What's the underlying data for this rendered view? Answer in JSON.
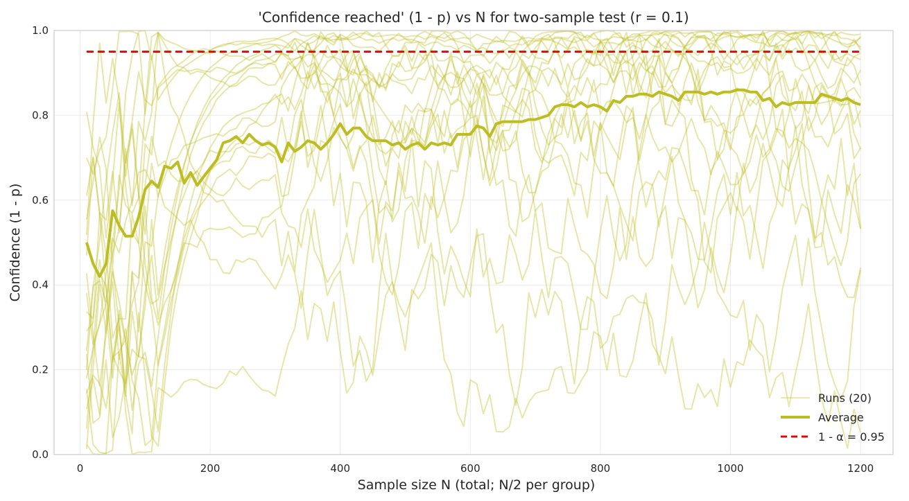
{
  "chart_data": {
    "type": "line",
    "title": "'Confidence reached' (1 - p) vs N for two-sample test (r = 0.1)",
    "xlabel": "Sample size N (total; N/2 per group)",
    "ylabel": "Confidence (1 - p)",
    "xlim": [
      -40,
      1250
    ],
    "ylim": [
      0,
      1.0
    ],
    "xticks": [
      0,
      200,
      400,
      600,
      800,
      1000,
      1200
    ],
    "yticks": [
      0.0,
      0.2,
      0.4,
      0.6,
      0.8,
      1.0
    ],
    "xtick_labels": [
      "0",
      "200",
      "400",
      "600",
      "800",
      "1000",
      "1200"
    ],
    "ytick_labels": [
      "0.0",
      "0.2",
      "0.4",
      "0.6",
      "0.8",
      "1.0"
    ],
    "grid": true,
    "legend_position": "bottom-right",
    "colors": {
      "runs": "#bcbd22",
      "average": "#bcbd22",
      "threshold": "#ee0000",
      "grid": "#ebebeb",
      "spine": "#cccccc"
    },
    "series": [
      {
        "name": "Average",
        "legend": "Average",
        "x": [
          10,
          20,
          30,
          40,
          50,
          60,
          70,
          80,
          90,
          100,
          110,
          120,
          130,
          140,
          150,
          160,
          170,
          180,
          190,
          200,
          210,
          220,
          230,
          240,
          250,
          260,
          270,
          280,
          290,
          300,
          310,
          320,
          330,
          340,
          350,
          360,
          370,
          380,
          390,
          400,
          410,
          420,
          430,
          440,
          450,
          460,
          470,
          480,
          490,
          500,
          510,
          520,
          530,
          540,
          550,
          560,
          570,
          580,
          590,
          600,
          610,
          620,
          630,
          640,
          650,
          660,
          670,
          680,
          690,
          700,
          710,
          720,
          730,
          740,
          750,
          760,
          770,
          780,
          790,
          800,
          810,
          820,
          830,
          840,
          850,
          860,
          870,
          880,
          890,
          900,
          910,
          920,
          930,
          940,
          950,
          960,
          970,
          980,
          990,
          1000,
          1010,
          1020,
          1030,
          1040,
          1050,
          1060,
          1070,
          1080,
          1090,
          1100,
          1110,
          1120,
          1130,
          1140,
          1150,
          1160,
          1170,
          1180,
          1190,
          1200
        ],
        "values": [
          0.5,
          0.45,
          0.42,
          0.45,
          0.575,
          0.54,
          0.515,
          0.515,
          0.56,
          0.625,
          0.645,
          0.63,
          0.68,
          0.675,
          0.69,
          0.64,
          0.665,
          0.635,
          0.655,
          0.675,
          0.695,
          0.735,
          0.74,
          0.75,
          0.735,
          0.755,
          0.74,
          0.73,
          0.735,
          0.725,
          0.69,
          0.735,
          0.715,
          0.725,
          0.74,
          0.735,
          0.72,
          0.735,
          0.755,
          0.78,
          0.755,
          0.77,
          0.77,
          0.75,
          0.74,
          0.74,
          0.74,
          0.73,
          0.735,
          0.72,
          0.73,
          0.735,
          0.72,
          0.735,
          0.73,
          0.735,
          0.73,
          0.755,
          0.755,
          0.755,
          0.775,
          0.77,
          0.75,
          0.78,
          0.785,
          0.785,
          0.785,
          0.785,
          0.79,
          0.79,
          0.795,
          0.8,
          0.82,
          0.825,
          0.825,
          0.82,
          0.83,
          0.82,
          0.825,
          0.82,
          0.81,
          0.835,
          0.83,
          0.845,
          0.845,
          0.85,
          0.85,
          0.845,
          0.855,
          0.85,
          0.845,
          0.835,
          0.855,
          0.855,
          0.855,
          0.85,
          0.855,
          0.85,
          0.855,
          0.855,
          0.86,
          0.86,
          0.855,
          0.855,
          0.835,
          0.84,
          0.82,
          0.83,
          0.825,
          0.83,
          0.83,
          0.83,
          0.83,
          0.85,
          0.845,
          0.84,
          0.835,
          0.84,
          0.83,
          0.825
        ]
      },
      {
        "name": "Threshold",
        "legend": "1 - α = 0.95",
        "x": [
          10,
          1200
        ],
        "values": [
          0.95,
          0.95
        ]
      },
      {
        "name": "Runs",
        "legend": "Runs (20)",
        "count": 20,
        "x_start": 10,
        "x_step": 10,
        "x_end": 1200,
        "note": "20 individual noisy runs; values approximated (each run's path generated deterministically from its seed and target level)",
        "runs": [
          {
            "seed": 11,
            "start": 0.92,
            "level": 0.99,
            "noise": 0.01
          },
          {
            "seed": 23,
            "start": 0.8,
            "level": 0.985,
            "noise": 0.015
          },
          {
            "seed": 37,
            "start": 0.7,
            "level": 0.98,
            "noise": 0.02
          },
          {
            "seed": 41,
            "start": 0.6,
            "level": 0.97,
            "noise": 0.03
          },
          {
            "seed": 53,
            "start": 0.5,
            "level": 0.96,
            "noise": 0.035
          },
          {
            "seed": 67,
            "start": 0.4,
            "level": 0.95,
            "noise": 0.04
          },
          {
            "seed": 71,
            "start": 0.3,
            "level": 0.93,
            "noise": 0.045
          },
          {
            "seed": 83,
            "start": 0.25,
            "level": 0.92,
            "noise": 0.05
          },
          {
            "seed": 97,
            "start": 0.2,
            "level": 0.9,
            "noise": 0.06
          },
          {
            "seed": 101,
            "start": 0.35,
            "level": 0.88,
            "noise": 0.07
          },
          {
            "seed": 113,
            "start": 0.15,
            "level": 0.85,
            "noise": 0.08
          },
          {
            "seed": 127,
            "start": 0.1,
            "level": 0.82,
            "noise": 0.09
          },
          {
            "seed": 131,
            "start": 0.45,
            "level": 0.78,
            "noise": 0.1
          },
          {
            "seed": 149,
            "start": 0.05,
            "level": 0.75,
            "noise": 0.11
          },
          {
            "seed": 151,
            "start": 0.55,
            "level": 0.7,
            "noise": 0.12
          },
          {
            "seed": 163,
            "start": 0.3,
            "level": 0.65,
            "noise": 0.13
          },
          {
            "seed": 179,
            "start": 0.2,
            "level": 0.6,
            "noise": 0.14
          },
          {
            "seed": 181,
            "start": 0.65,
            "level": 0.55,
            "noise": 0.15
          },
          {
            "seed": 191,
            "start": 0.25,
            "level": 0.45,
            "noise": 0.16
          },
          {
            "seed": 199,
            "start": 0.1,
            "level": 0.2,
            "noise": 0.12
          }
        ]
      }
    ]
  }
}
